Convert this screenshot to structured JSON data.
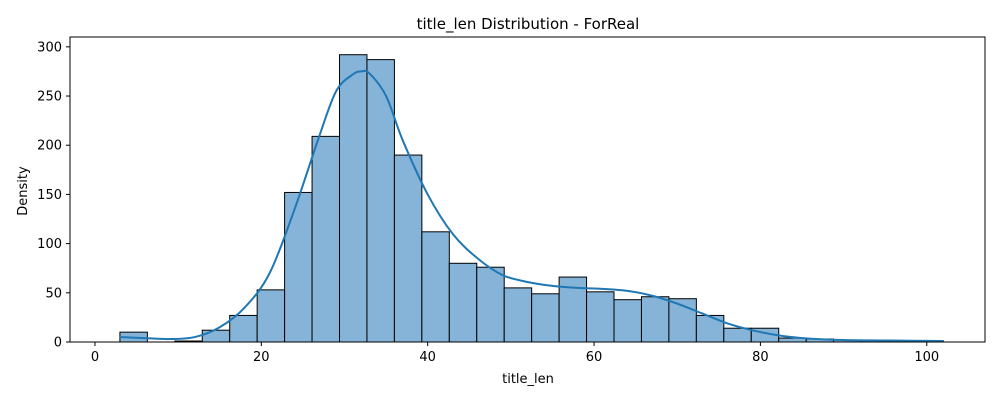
{
  "chart_data": {
    "type": "bar",
    "title": "title_len Distribution - ForReal",
    "xlabel": "title_len",
    "ylabel": "Density",
    "xlim": [
      -3,
      107
    ],
    "ylim": [
      0,
      310
    ],
    "xticks": [
      0,
      20,
      40,
      60,
      80,
      100
    ],
    "yticks": [
      0,
      50,
      100,
      150,
      200,
      250,
      300
    ],
    "grid": false,
    "bar_color": "#86b4d8",
    "edge_color": "#000000",
    "kde_color": "#1f77b4",
    "bin_edges": [
      3,
      6.3,
      9.6,
      12.9,
      16.2,
      19.5,
      22.8,
      26.1,
      29.4,
      32.7,
      36.0,
      39.3,
      42.6,
      45.9,
      49.2,
      52.5,
      55.8,
      59.1,
      62.4,
      65.7,
      69.0,
      72.3,
      75.6,
      78.9,
      82.2,
      85.5,
      88.8,
      92.1,
      95.4,
      98.7,
      102
    ],
    "counts": [
      10,
      0,
      1,
      12,
      27,
      53,
      152,
      209,
      292,
      287,
      190,
      112,
      80,
      76,
      55,
      49,
      66,
      51,
      43,
      46,
      44,
      27,
      14,
      14,
      4,
      3,
      2,
      2,
      1,
      1
    ],
    "kde": {
      "x": [
        3,
        6,
        9,
        12,
        15,
        18,
        21,
        24,
        27,
        29,
        31,
        32,
        33,
        35,
        37,
        40,
        43,
        46,
        49,
        52,
        55,
        58,
        61,
        64,
        67,
        70,
        73,
        76,
        79,
        82,
        85,
        90,
        95,
        102
      ],
      "y": [
        5,
        4,
        3,
        5,
        15,
        35,
        70,
        135,
        210,
        255,
        272,
        275,
        273,
        250,
        205,
        150,
        110,
        85,
        68,
        61,
        57,
        55,
        54,
        52,
        47,
        39,
        29,
        19,
        12,
        7,
        4,
        2,
        1.5,
        1
      ]
    }
  }
}
